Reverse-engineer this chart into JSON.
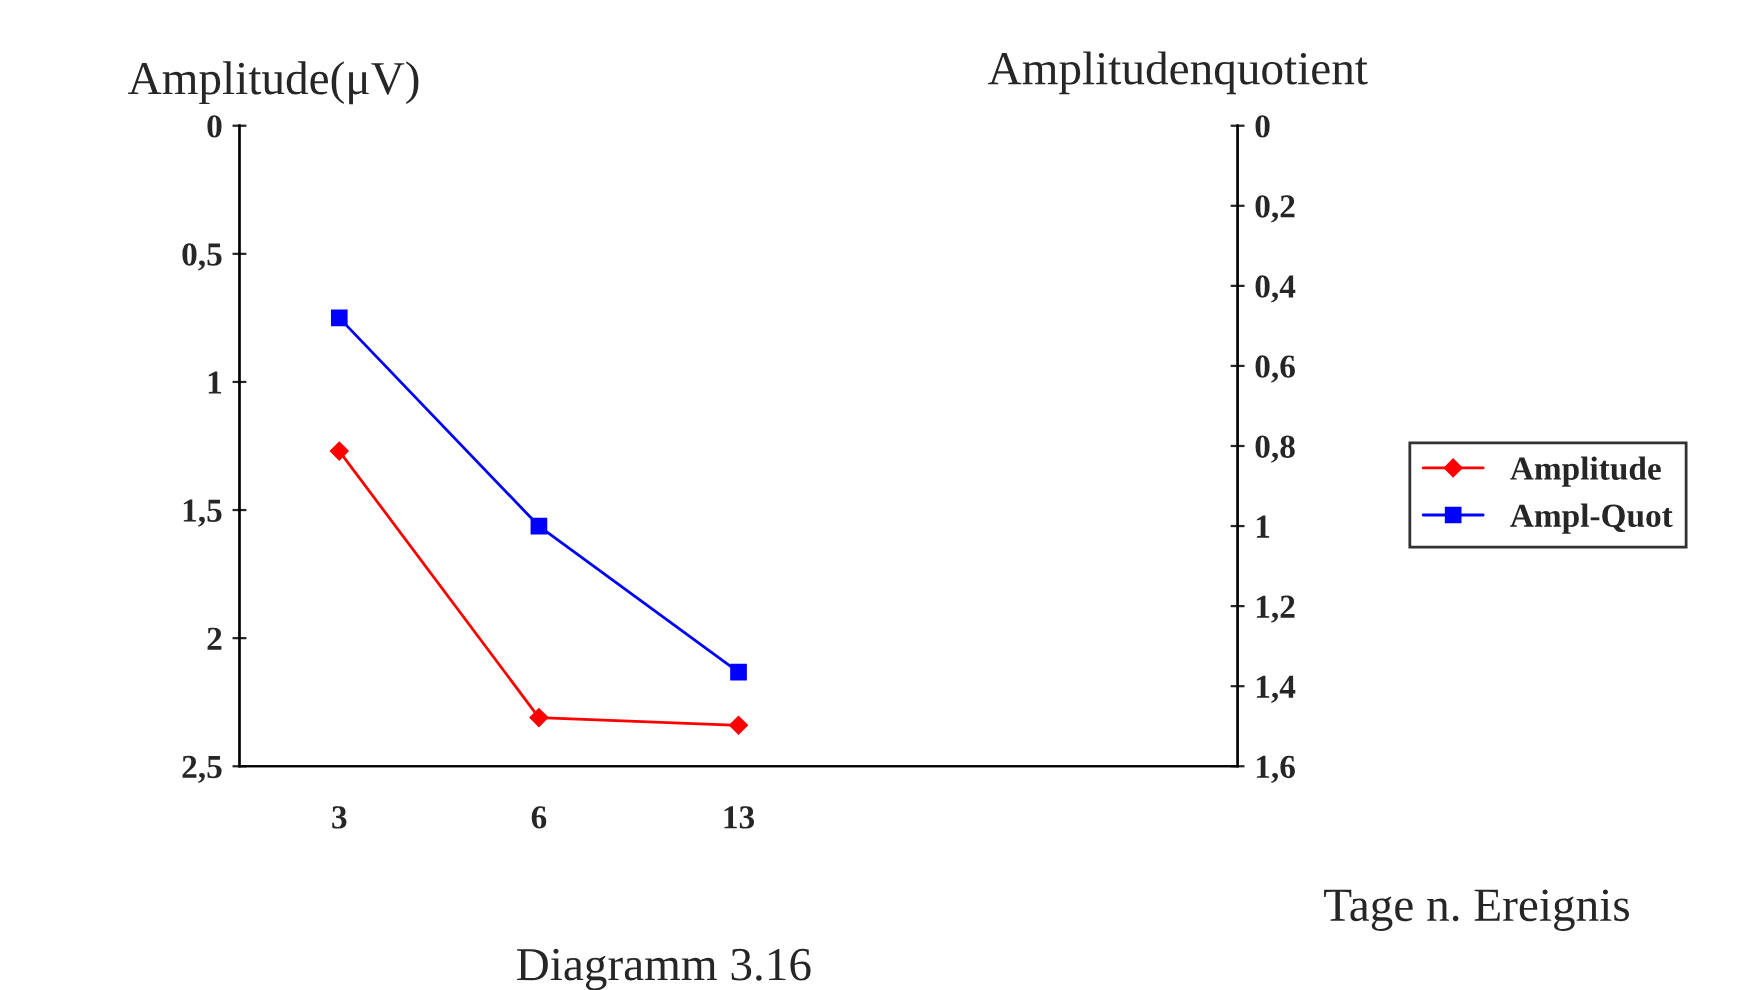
{
  "chart_data": {
    "type": "line",
    "categories": [
      "3",
      "6",
      "13",
      null
    ],
    "ylabel": "Amplitude(μV)",
    "y2label": "Amplitudenquotient",
    "xlabel": "Tage n. Ereignis",
    "annotations": [
      "Diagramm 3.16"
    ],
    "ylim": [
      2.5,
      0
    ],
    "yticks": [
      0,
      {
        "value": 0.5,
        "label": "0,5"
      },
      1,
      {
        "value": 1.5,
        "label": "1,5"
      },
      2,
      {
        "value": 2.5,
        "label": "2,5"
      }
    ],
    "y2lim": [
      1.6,
      0
    ],
    "y2ticks": [
      0,
      {
        "value": 0.2,
        "label": "0,2"
      },
      {
        "value": 0.4,
        "label": "0,4"
      },
      {
        "value": 0.6,
        "label": "0,6"
      },
      {
        "value": 0.8,
        "label": "0,8"
      },
      1,
      {
        "value": 1.2,
        "label": "1,2"
      },
      {
        "value": 1.4,
        "label": "1,4"
      },
      {
        "value": 1.6,
        "label": "1,6"
      }
    ],
    "series": [
      {
        "name": "Amplitude",
        "color": "#ff0000",
        "marker": "diamond",
        "values": [
          1.27,
          2.31,
          2.34,
          null
        ]
      },
      {
        "name": "Ampl-Quot",
        "color": "#0000ff",
        "marker": "square",
        "axis": "y2",
        "values": [
          0.48,
          1.0,
          1.365,
          null
        ]
      }
    ],
    "legend": "right",
    "grid": false,
    "line_style": "solid"
  }
}
